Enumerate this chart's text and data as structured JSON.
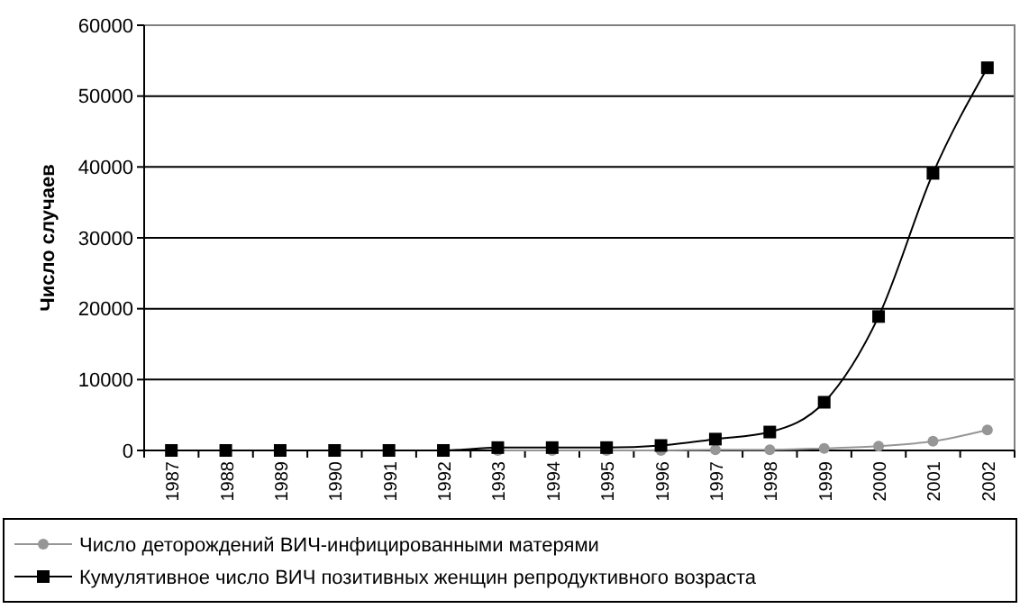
{
  "chart_data": {
    "type": "line",
    "ylabel": "Число случаев",
    "categories": [
      "1987",
      "1988",
      "1989",
      "1990",
      "1991",
      "1992",
      "1993",
      "1994",
      "1995",
      "1996",
      "1997",
      "1998",
      "1999",
      "2000",
      "2001",
      "2002"
    ],
    "series": [
      {
        "name": "Число деторождений  ВИЧ-инфицированными матерями",
        "color": "#969696",
        "marker": "circle",
        "values": [
          null,
          null,
          null,
          null,
          null,
          null,
          0,
          0,
          0,
          0,
          100,
          100,
          300,
          600,
          1300,
          2900
        ]
      },
      {
        "name": "Кумулятивное число ВИЧ позитивных женщин репродуктивного возраста",
        "color": "#000000",
        "marker": "square",
        "values": [
          0,
          0,
          0,
          0,
          0,
          0,
          400,
          400,
          400,
          700,
          1600,
          2600,
          6800,
          18900,
          39100,
          54000
        ]
      }
    ],
    "ylim": [
      0,
      60000
    ],
    "yticks": [
      0,
      10000,
      20000,
      30000,
      40000,
      50000,
      60000
    ],
    "grid": "y",
    "legend": "bottom"
  }
}
